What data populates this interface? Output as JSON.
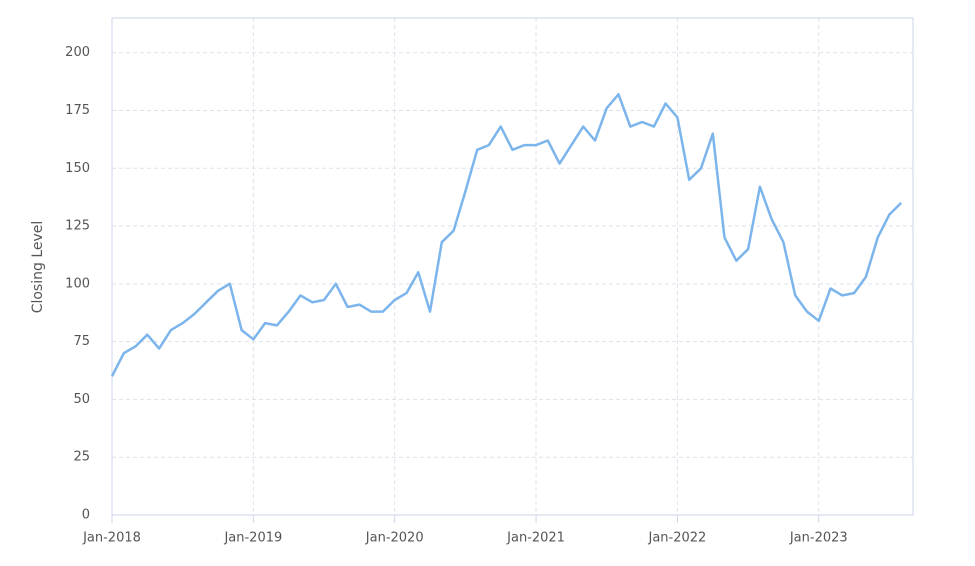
{
  "chart_data": {
    "type": "line",
    "y_label": "Closing Level",
    "x": [
      "2018-01",
      "2018-02",
      "2018-03",
      "2018-04",
      "2018-05",
      "2018-06",
      "2018-07",
      "2018-08",
      "2018-09",
      "2018-10",
      "2018-11",
      "2018-12",
      "2019-01",
      "2019-02",
      "2019-03",
      "2019-04",
      "2019-05",
      "2019-06",
      "2019-07",
      "2019-08",
      "2019-09",
      "2019-10",
      "2019-11",
      "2019-12",
      "2020-01",
      "2020-02",
      "2020-03",
      "2020-04",
      "2020-05",
      "2020-06",
      "2020-07",
      "2020-08",
      "2020-09",
      "2020-10",
      "2020-11",
      "2020-12",
      "2021-01",
      "2021-02",
      "2021-03",
      "2021-04",
      "2021-05",
      "2021-06",
      "2021-07",
      "2021-08",
      "2021-09",
      "2021-10",
      "2021-11",
      "2021-12",
      "2022-01",
      "2022-02",
      "2022-03",
      "2022-04",
      "2022-05",
      "2022-06",
      "2022-07",
      "2022-08",
      "2022-09",
      "2022-10",
      "2022-11",
      "2022-12",
      "2023-01",
      "2023-02",
      "2023-03",
      "2023-04",
      "2023-05",
      "2023-06",
      "2023-07",
      "2023-08"
    ],
    "values": [
      60,
      70,
      73,
      78,
      72,
      80,
      83,
      87,
      92,
      97,
      100,
      80,
      76,
      83,
      82,
      88,
      95,
      92,
      93,
      100,
      90,
      91,
      88,
      88,
      93,
      96,
      105,
      88,
      118,
      123,
      140,
      158,
      160,
      168,
      158,
      160,
      160,
      162,
      152,
      160,
      168,
      162,
      176,
      182,
      168,
      170,
      168,
      178,
      172,
      145,
      150,
      165,
      120,
      110,
      115,
      142,
      128,
      118,
      95,
      88,
      84,
      98,
      95,
      96,
      103,
      120,
      130,
      135
    ],
    "color": "#7cb5ec",
    "xlim": [
      "2018-01",
      "2023-09"
    ],
    "xticks": [
      {
        "value": "2018-01",
        "label": "Jan-2018"
      },
      {
        "value": "2019-01",
        "label": "Jan-2019"
      },
      {
        "value": "2020-01",
        "label": "Jan-2020"
      },
      {
        "value": "2021-01",
        "label": "Jan-2021"
      },
      {
        "value": "2022-01",
        "label": "Jan-2022"
      },
      {
        "value": "2023-01",
        "label": "Jan-2023"
      }
    ],
    "ylim": [
      0,
      215
    ],
    "yticks": [
      0,
      25,
      50,
      75,
      100,
      125,
      150,
      175,
      200
    ],
    "grid": true
  }
}
